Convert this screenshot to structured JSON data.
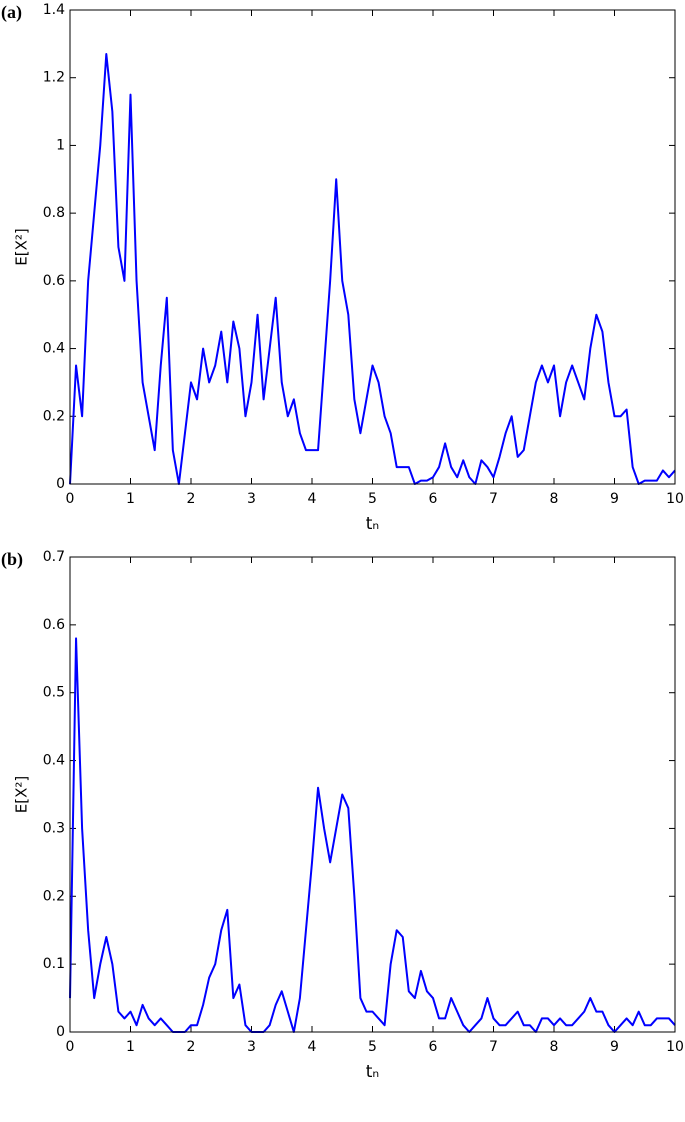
{
  "chart_data": [
    {
      "type": "line",
      "panel_label": "(a)",
      "ylabel": "E[X²]",
      "xlabel": "tₙ",
      "xlim": [
        0,
        10
      ],
      "xticks": [
        0,
        1,
        2,
        3,
        4,
        5,
        6,
        7,
        8,
        9,
        10
      ],
      "ylim": [
        0,
        1.4
      ],
      "yticks": [
        0,
        0.2,
        0.4,
        0.6,
        0.8,
        1,
        1.2,
        1.4
      ],
      "color": "#0000ff",
      "x": [
        0,
        0.1,
        0.2,
        0.3,
        0.4,
        0.5,
        0.6,
        0.7,
        0.8,
        0.9,
        1,
        1.1,
        1.2,
        1.3,
        1.4,
        1.5,
        1.6,
        1.7,
        1.8,
        1.9,
        2,
        2.1,
        2.2,
        2.3,
        2.4,
        2.5,
        2.6,
        2.7,
        2.8,
        2.9,
        3,
        3.1,
        3.2,
        3.3,
        3.4,
        3.5,
        3.6,
        3.7,
        3.8,
        3.9,
        4,
        4.1,
        4.2,
        4.3,
        4.4,
        4.5,
        4.6,
        4.7,
        4.8,
        4.9,
        5,
        5.1,
        5.2,
        5.3,
        5.4,
        5.5,
        5.6,
        5.7,
        5.8,
        5.9,
        6,
        6.1,
        6.2,
        6.3,
        6.4,
        6.5,
        6.6,
        6.7,
        6.8,
        6.9,
        7,
        7.1,
        7.2,
        7.3,
        7.4,
        7.5,
        7.6,
        7.7,
        7.8,
        7.9,
        8,
        8.1,
        8.2,
        8.3,
        8.4,
        8.5,
        8.6,
        8.7,
        8.8,
        8.9,
        9,
        9.1,
        9.2,
        9.3,
        9.4,
        9.5,
        9.6,
        9.7,
        9.8,
        9.9,
        10
      ],
      "values": [
        0,
        0.35,
        0.2,
        0.6,
        0.8,
        1.0,
        1.27,
        1.1,
        0.7,
        0.6,
        1.15,
        0.6,
        0.3,
        0.2,
        0.1,
        0.35,
        0.55,
        0.1,
        0.0,
        0.15,
        0.3,
        0.25,
        0.4,
        0.3,
        0.35,
        0.45,
        0.3,
        0.48,
        0.4,
        0.2,
        0.3,
        0.5,
        0.25,
        0.4,
        0.55,
        0.3,
        0.2,
        0.25,
        0.15,
        0.1,
        0.1,
        0.1,
        0.35,
        0.6,
        0.9,
        0.6,
        0.5,
        0.25,
        0.15,
        0.25,
        0.35,
        0.3,
        0.2,
        0.15,
        0.05,
        0.05,
        0.05,
        0.0,
        0.01,
        0.01,
        0.02,
        0.05,
        0.12,
        0.05,
        0.02,
        0.07,
        0.02,
        0.0,
        0.07,
        0.05,
        0.02,
        0.08,
        0.15,
        0.2,
        0.08,
        0.1,
        0.2,
        0.3,
        0.35,
        0.3,
        0.35,
        0.2,
        0.3,
        0.35,
        0.3,
        0.25,
        0.4,
        0.5,
        0.45,
        0.3,
        0.2,
        0.2,
        0.22,
        0.05,
        0.0,
        0.01,
        0.01,
        0.01,
        0.04,
        0.02,
        0.04
      ]
    },
    {
      "type": "line",
      "panel_label": "(b)",
      "ylabel": "E[X²]",
      "xlabel": "tₙ",
      "xlim": [
        0,
        10
      ],
      "xticks": [
        0,
        1,
        2,
        3,
        4,
        5,
        6,
        7,
        8,
        9,
        10
      ],
      "ylim": [
        0,
        0.7
      ],
      "yticks": [
        0,
        0.1,
        0.2,
        0.3,
        0.4,
        0.5,
        0.6,
        0.7
      ],
      "color": "#0000ff",
      "x": [
        0,
        0.1,
        0.2,
        0.3,
        0.4,
        0.5,
        0.6,
        0.7,
        0.8,
        0.9,
        1,
        1.1,
        1.2,
        1.3,
        1.4,
        1.5,
        1.6,
        1.7,
        1.8,
        1.9,
        2,
        2.1,
        2.2,
        2.3,
        2.4,
        2.5,
        2.6,
        2.7,
        2.8,
        2.9,
        3,
        3.1,
        3.2,
        3.3,
        3.4,
        3.5,
        3.6,
        3.7,
        3.8,
        3.9,
        4,
        4.1,
        4.2,
        4.3,
        4.4,
        4.5,
        4.6,
        4.7,
        4.8,
        4.9,
        5,
        5.1,
        5.2,
        5.3,
        5.4,
        5.5,
        5.6,
        5.7,
        5.8,
        5.9,
        6,
        6.1,
        6.2,
        6.3,
        6.4,
        6.5,
        6.6,
        6.7,
        6.8,
        6.9,
        7,
        7.1,
        7.2,
        7.3,
        7.4,
        7.5,
        7.6,
        7.7,
        7.8,
        7.9,
        8,
        8.1,
        8.2,
        8.3,
        8.4,
        8.5,
        8.6,
        8.7,
        8.8,
        8.9,
        9,
        9.1,
        9.2,
        9.3,
        9.4,
        9.5,
        9.6,
        9.7,
        9.8,
        9.9,
        10
      ],
      "values": [
        0.05,
        0.58,
        0.3,
        0.15,
        0.05,
        0.1,
        0.14,
        0.1,
        0.03,
        0.02,
        0.03,
        0.01,
        0.04,
        0.02,
        0.01,
        0.02,
        0.01,
        0.0,
        0.0,
        0.0,
        0.01,
        0.01,
        0.04,
        0.08,
        0.1,
        0.15,
        0.18,
        0.05,
        0.07,
        0.01,
        0.0,
        0.0,
        0.0,
        0.01,
        0.04,
        0.06,
        0.03,
        0.0,
        0.05,
        0.15,
        0.25,
        0.36,
        0.3,
        0.25,
        0.3,
        0.35,
        0.33,
        0.2,
        0.05,
        0.03,
        0.03,
        0.02,
        0.01,
        0.1,
        0.15,
        0.14,
        0.06,
        0.05,
        0.09,
        0.06,
        0.05,
        0.02,
        0.02,
        0.05,
        0.03,
        0.01,
        0.0,
        0.01,
        0.02,
        0.05,
        0.02,
        0.01,
        0.01,
        0.02,
        0.03,
        0.01,
        0.01,
        0.0,
        0.02,
        0.02,
        0.01,
        0.02,
        0.01,
        0.01,
        0.02,
        0.03,
        0.05,
        0.03,
        0.03,
        0.01,
        0.0,
        0.01,
        0.02,
        0.01,
        0.03,
        0.01,
        0.01,
        0.02,
        0.02,
        0.02,
        0.01
      ]
    }
  ]
}
